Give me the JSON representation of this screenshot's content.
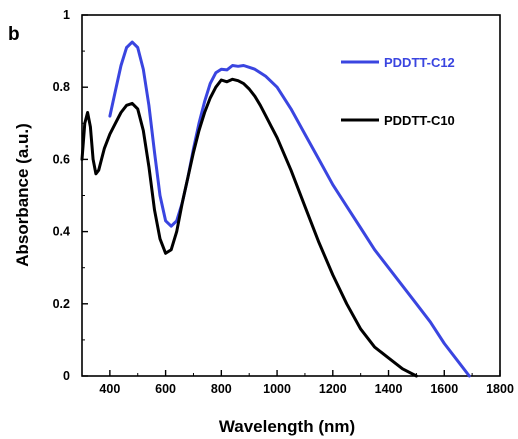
{
  "panel_label": "b",
  "chart_data": {
    "type": "line",
    "xlabel": "Wavelength (nm)",
    "ylabel": "Absorbance (a.u.)",
    "xlim": [
      300,
      1800
    ],
    "ylim": [
      0,
      1
    ],
    "xticks": [
      400,
      600,
      800,
      1000,
      1200,
      1400,
      1600,
      1800
    ],
    "yticks": [
      0,
      0.2,
      0.4,
      0.6,
      0.8,
      1
    ],
    "ytick_labels": [
      "0",
      "0.2",
      "0.4",
      "0.6",
      "0.8",
      "1"
    ],
    "legend_position": "top-right",
    "grid": false,
    "series": [
      {
        "name": "PDDTT-C12",
        "color": "#3a45e0",
        "x": [
          400,
          420,
          440,
          460,
          480,
          500,
          520,
          540,
          560,
          580,
          600,
          620,
          640,
          660,
          680,
          700,
          720,
          740,
          760,
          780,
          800,
          820,
          840,
          860,
          880,
          900,
          920,
          940,
          960,
          980,
          1000,
          1050,
          1100,
          1150,
          1200,
          1250,
          1300,
          1350,
          1400,
          1450,
          1500,
          1550,
          1600,
          1650,
          1690
        ],
        "y": [
          0.72,
          0.79,
          0.86,
          0.91,
          0.925,
          0.91,
          0.85,
          0.75,
          0.62,
          0.5,
          0.43,
          0.415,
          0.43,
          0.48,
          0.55,
          0.63,
          0.7,
          0.76,
          0.81,
          0.84,
          0.85,
          0.848,
          0.86,
          0.858,
          0.86,
          0.855,
          0.85,
          0.84,
          0.83,
          0.815,
          0.8,
          0.74,
          0.67,
          0.6,
          0.53,
          0.47,
          0.41,
          0.35,
          0.3,
          0.25,
          0.2,
          0.15,
          0.09,
          0.04,
          0.0
        ]
      },
      {
        "name": "PDDTT-C10",
        "color": "#000000",
        "x": [
          300,
          310,
          320,
          330,
          340,
          350,
          360,
          370,
          380,
          400,
          420,
          440,
          460,
          480,
          500,
          520,
          540,
          560,
          580,
          600,
          620,
          640,
          660,
          680,
          700,
          720,
          740,
          760,
          780,
          800,
          820,
          840,
          860,
          880,
          900,
          920,
          940,
          960,
          980,
          1000,
          1050,
          1100,
          1150,
          1200,
          1250,
          1300,
          1350,
          1400,
          1450,
          1500
        ],
        "y": [
          0.6,
          0.7,
          0.73,
          0.69,
          0.6,
          0.56,
          0.57,
          0.6,
          0.63,
          0.67,
          0.7,
          0.73,
          0.75,
          0.755,
          0.74,
          0.68,
          0.58,
          0.46,
          0.38,
          0.34,
          0.35,
          0.4,
          0.48,
          0.55,
          0.62,
          0.68,
          0.73,
          0.77,
          0.8,
          0.82,
          0.815,
          0.822,
          0.818,
          0.81,
          0.795,
          0.775,
          0.75,
          0.72,
          0.69,
          0.66,
          0.57,
          0.47,
          0.37,
          0.28,
          0.2,
          0.13,
          0.08,
          0.05,
          0.02,
          0.0
        ]
      }
    ]
  }
}
